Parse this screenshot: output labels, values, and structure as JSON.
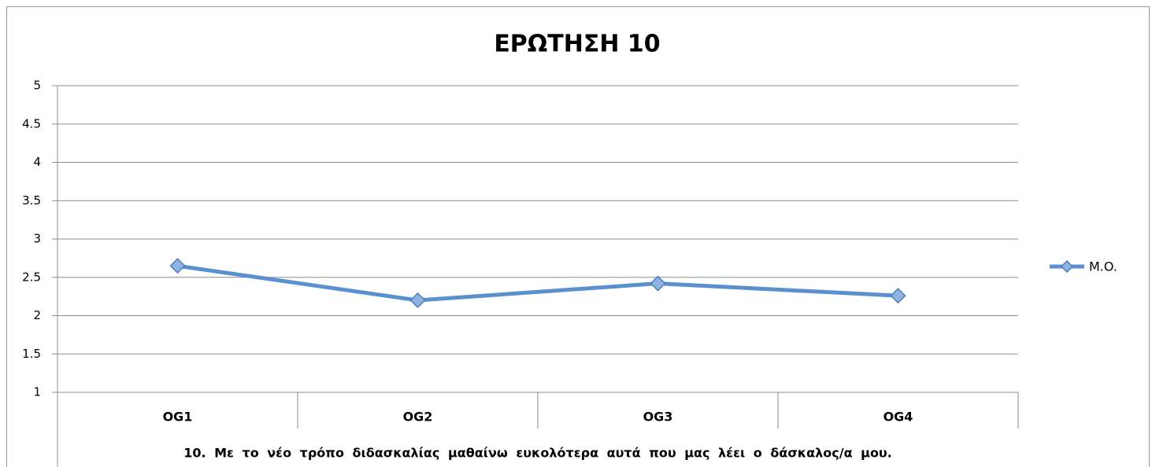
{
  "chart_data": {
    "type": "line",
    "title": "ΕΡΩΤΗΣΗ  10",
    "categories": [
      "OG1",
      "OG2",
      "OG3",
      "OG4"
    ],
    "series": [
      {
        "name": "M.O.",
        "color": "#5b8fcf",
        "values": [
          2.65,
          2.2,
          2.42,
          2.26
        ]
      }
    ],
    "x_label": "10. Με το νέο τρόπο διδασκαλίας μαθαίνω ευκολότερα αυτά που μας λέει ο δάσκαλος/α μου.",
    "ylim": [
      1,
      5
    ],
    "yticks": [
      1,
      1.5,
      2,
      2.5,
      3,
      3.5,
      4,
      4.5,
      5
    ],
    "grid": true,
    "legend": "right"
  }
}
